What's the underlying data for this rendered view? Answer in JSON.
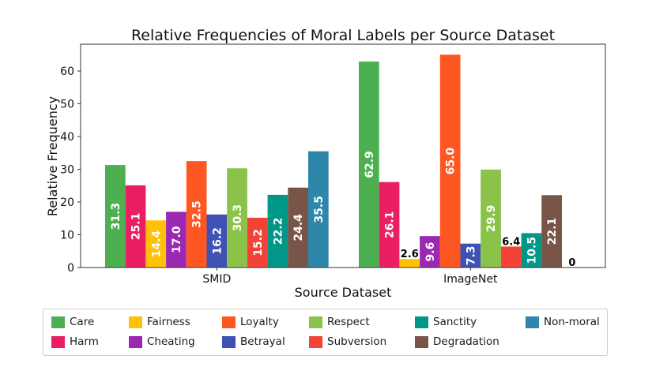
{
  "chart_data": {
    "type": "bar",
    "title": "Relative Frequencies of Moral Labels per Source Dataset",
    "xlabel": "Source Dataset",
    "ylabel": "Relative Frequency",
    "ylim": [
      0,
      68.2
    ],
    "yticks": [
      0,
      10,
      20,
      30,
      40,
      50,
      60
    ],
    "grid": false,
    "legend_position": "bottom",
    "categories": [
      "SMID",
      "ImageNet"
    ],
    "series": [
      {
        "name": "Care",
        "color": "#4caf50",
        "values": [
          31.3,
          62.9
        ],
        "labels": [
          "31.3",
          "62.9"
        ]
      },
      {
        "name": "Harm",
        "color": "#e91e63",
        "values": [
          25.1,
          26.1
        ],
        "labels": [
          "25.1",
          "26.1"
        ]
      },
      {
        "name": "Fairness",
        "color": "#ffc107",
        "values": [
          14.4,
          2.6
        ],
        "labels": [
          "14.4",
          "2.6"
        ]
      },
      {
        "name": "Cheating",
        "color": "#9c27b0",
        "values": [
          17.0,
          9.6
        ],
        "labels": [
          "17.0",
          "9.6"
        ]
      },
      {
        "name": "Loyalty",
        "color": "#ff5722",
        "values": [
          32.5,
          65.0
        ],
        "labels": [
          "32.5",
          "65.0"
        ]
      },
      {
        "name": "Betrayal",
        "color": "#3f51b5",
        "values": [
          16.2,
          7.3
        ],
        "labels": [
          "16.2",
          "7.3"
        ]
      },
      {
        "name": "Respect",
        "color": "#8bc34a",
        "values": [
          30.3,
          29.9
        ],
        "labels": [
          "30.3",
          "29.9"
        ]
      },
      {
        "name": "Subversion",
        "color": "#f44336",
        "values": [
          15.2,
          6.4
        ],
        "labels": [
          "15.2",
          "6.4"
        ]
      },
      {
        "name": "Sanctity",
        "color": "#009688",
        "values": [
          22.2,
          10.5
        ],
        "labels": [
          "22.2",
          "10.5"
        ]
      },
      {
        "name": "Degradation",
        "color": "#795548",
        "values": [
          24.4,
          22.1
        ],
        "labels": [
          "24.4",
          "22.1"
        ]
      },
      {
        "name": "Non-moral",
        "color": "#2e86ab",
        "values": [
          35.5,
          0
        ],
        "labels": [
          "35.5",
          "0"
        ]
      }
    ],
    "legend_order": [
      "Care",
      "Fairness",
      "Loyalty",
      "Respect",
      "Sanctity",
      "Non-moral",
      "Harm",
      "Cheating",
      "Betrayal",
      "Subversion",
      "Degradation"
    ]
  }
}
